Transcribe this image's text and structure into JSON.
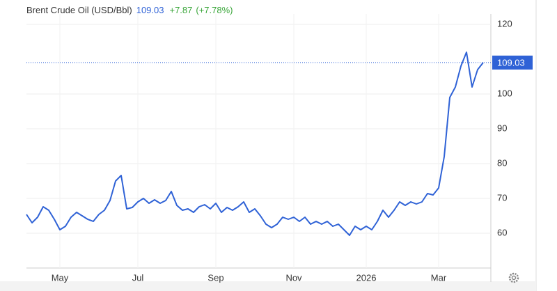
{
  "chart_data": {
    "type": "line",
    "title": "Brent Crude Oil (USD/Bbl)",
    "change": "+7.87",
    "change_pct": "(+7.78%)",
    "color": "#2f62d6",
    "categories": [
      null,
      null,
      null,
      null,
      null,
      null,
      "May",
      null,
      null,
      null,
      null,
      null,
      null,
      null,
      null,
      null,
      null,
      null,
      null,
      null,
      "Jul",
      null,
      null,
      null,
      null,
      null,
      null,
      null,
      null,
      null,
      null,
      null,
      null,
      null,
      "Sep",
      null,
      null,
      null,
      null,
      null,
      null,
      null,
      null,
      null,
      null,
      null,
      null,
      null,
      "Nov",
      null,
      null,
      null,
      null,
      null,
      null,
      null,
      null,
      null,
      null,
      null,
      null,
      "2026",
      null,
      null,
      null,
      null,
      null,
      null,
      null,
      null,
      null,
      null,
      null,
      null,
      "Mar",
      null,
      null,
      null,
      null,
      null,
      null,
      null,
      null
    ],
    "values": [
      65.4,
      63,
      64.6,
      67.6,
      66.6,
      64,
      61,
      62,
      64.6,
      66,
      65,
      64,
      63.4,
      65.4,
      66.6,
      69.4,
      75,
      76.6,
      67,
      67.4,
      69,
      70,
      68.6,
      69.6,
      68.6,
      69.4,
      72,
      68,
      66.6,
      67,
      66,
      67.6,
      68.2,
      67,
      68.6,
      66,
      67.4,
      66.6,
      67.6,
      69,
      66,
      67,
      65,
      62.6,
      61.6,
      62.6,
      64.6,
      64,
      64.6,
      63.4,
      64.6,
      62.6,
      63.4,
      62.6,
      63.4,
      62,
      62.6,
      61,
      59.4,
      62,
      61,
      62,
      61,
      63.4,
      66.6,
      64.6,
      66.6,
      69,
      68,
      69,
      68.4,
      69,
      71.4,
      71,
      73,
      82,
      99,
      102,
      108,
      112,
      102,
      107,
      109.03
    ],
    "ylim": [
      50,
      125
    ],
    "yticks": [
      60,
      70,
      80,
      90,
      100,
      120
    ],
    "grid": true
  }
}
